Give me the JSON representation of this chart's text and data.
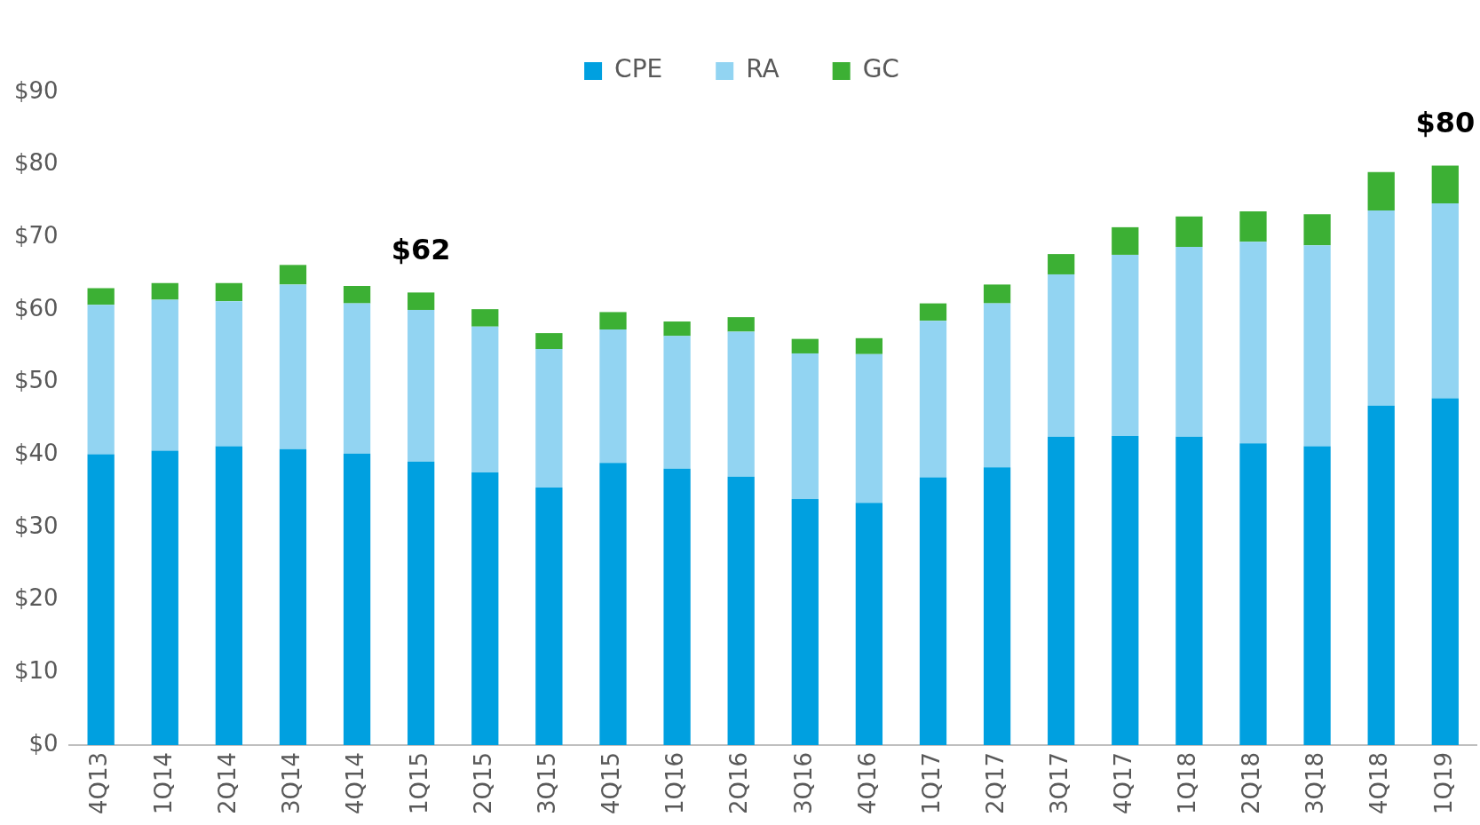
{
  "chart_data": {
    "type": "bar",
    "stacked": true,
    "legend": "top",
    "grid": false,
    "categories": [
      "4Q13",
      "1Q14",
      "2Q14",
      "3Q14",
      "4Q14",
      "1Q15",
      "2Q15",
      "3Q15",
      "4Q15",
      "1Q16",
      "2Q16",
      "3Q16",
      "4Q16",
      "1Q17",
      "2Q17",
      "3Q17",
      "4Q17",
      "1Q18",
      "2Q18",
      "3Q18",
      "4Q18",
      "1Q19"
    ],
    "series": [
      {
        "name": "CPE",
        "color": "#00a0e0",
        "values": [
          40.1,
          40.6,
          41.2,
          40.8,
          40.2,
          39.1,
          37.6,
          35.5,
          38.9,
          38.1,
          37.0,
          33.9,
          33.4,
          36.9,
          38.3,
          42.5,
          42.6,
          42.5,
          41.6,
          41.2,
          46.8,
          47.8
        ]
      },
      {
        "name": "RA",
        "color": "#92d4f2",
        "values": [
          20.6,
          20.8,
          20.0,
          22.7,
          20.7,
          20.9,
          20.1,
          19.1,
          18.4,
          18.3,
          20.0,
          20.1,
          20.5,
          21.6,
          22.6,
          22.4,
          25.0,
          26.2,
          27.8,
          27.7,
          26.9,
          26.9
        ]
      },
      {
        "name": "GC",
        "color": "#3cb034",
        "values": [
          2.3,
          2.3,
          2.5,
          2.7,
          2.4,
          2.4,
          2.4,
          2.2,
          2.4,
          2.0,
          2.0,
          2.0,
          2.2,
          2.4,
          2.6,
          2.8,
          3.8,
          4.2,
          4.2,
          4.3,
          5.3,
          5.2
        ]
      }
    ],
    "ylim": [
      0,
      90
    ],
    "yticks": [
      {
        "value": 0,
        "label": "$0"
      },
      {
        "value": 10,
        "label": "$10"
      },
      {
        "value": 20,
        "label": "$20"
      },
      {
        "value": 30,
        "label": "$30"
      },
      {
        "value": 40,
        "label": "$40"
      },
      {
        "value": 50,
        "label": "$50"
      },
      {
        "value": 60,
        "label": "$60"
      },
      {
        "value": 70,
        "label": "$70"
      },
      {
        "value": 80,
        "label": "$80"
      },
      {
        "value": 90,
        "label": "$90"
      }
    ],
    "annotations": [
      {
        "text": "$62",
        "x": "1Q15",
        "y": 62.4
      },
      {
        "text": "$80",
        "x": "1Q19",
        "y": 79.9
      }
    ]
  }
}
